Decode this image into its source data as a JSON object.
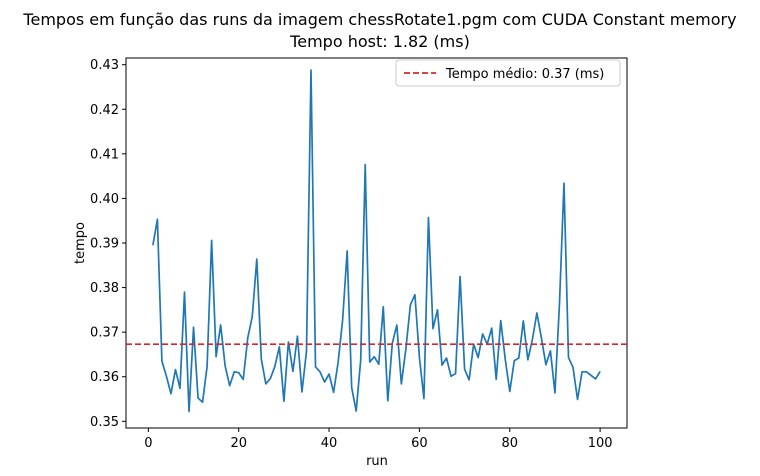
{
  "chart_data": {
    "type": "line",
    "title": "Tempos em função das runs da imagem chessRotate1.pgm com CUDA Constant memory",
    "subtitle": "Tempo host: 1.82 (ms)",
    "xlabel": "run",
    "ylabel": "tempo",
    "xlim": [
      -4.95,
      105.95
    ],
    "ylim": [
      0.3485,
      0.4315
    ],
    "x_ticks": [
      0,
      20,
      40,
      60,
      80,
      100
    ],
    "x_tick_labels": [
      "0",
      "20",
      "40",
      "60",
      "80",
      "100"
    ],
    "y_ticks": [
      0.35,
      0.36,
      0.37,
      0.38,
      0.39,
      0.4,
      0.41,
      0.42,
      0.43
    ],
    "y_tick_labels": [
      "0.35",
      "0.36",
      "0.37",
      "0.38",
      "0.39",
      "0.40",
      "0.41",
      "0.42",
      "0.43"
    ],
    "grid": false,
    "legend_position": "top-right",
    "series": [
      {
        "color": "#1f77b4",
        "style": "solid",
        "x": [
          1,
          2,
          3,
          4,
          5,
          6,
          7,
          8,
          9,
          10,
          11,
          12,
          13,
          14,
          15,
          16,
          17,
          18,
          19,
          20,
          21,
          22,
          23,
          24,
          25,
          26,
          27,
          28,
          29,
          30,
          31,
          32,
          33,
          34,
          35,
          36,
          37,
          38,
          39,
          40,
          41,
          42,
          43,
          44,
          45,
          46,
          47,
          48,
          49,
          50,
          51,
          52,
          53,
          54,
          55,
          56,
          57,
          58,
          59,
          60,
          61,
          62,
          63,
          64,
          65,
          66,
          67,
          68,
          69,
          70,
          71,
          72,
          73,
          74,
          75,
          76,
          77,
          78,
          79,
          80,
          81,
          82,
          83,
          84,
          85,
          86,
          87,
          88,
          89,
          90,
          91,
          92,
          93,
          94,
          95,
          96,
          97,
          98,
          99,
          100
        ],
        "values": [
          0.3895,
          0.3953,
          0.3635,
          0.3601,
          0.3562,
          0.3616,
          0.3574,
          0.379,
          0.3522,
          0.3711,
          0.3552,
          0.3543,
          0.3623,
          0.3906,
          0.3645,
          0.3716,
          0.3624,
          0.358,
          0.3611,
          0.3609,
          0.3594,
          0.3687,
          0.3735,
          0.3864,
          0.364,
          0.3584,
          0.3596,
          0.3623,
          0.3667,
          0.3545,
          0.3678,
          0.3612,
          0.3691,
          0.3566,
          0.3657,
          0.4288,
          0.3622,
          0.3611,
          0.3588,
          0.3606,
          0.3565,
          0.3632,
          0.3727,
          0.3882,
          0.3576,
          0.3523,
          0.3637,
          0.4076,
          0.3633,
          0.3645,
          0.3628,
          0.3757,
          0.3546,
          0.3675,
          0.3716,
          0.3584,
          0.3662,
          0.3761,
          0.3784,
          0.3643,
          0.3551,
          0.3957,
          0.3708,
          0.375,
          0.3626,
          0.3642,
          0.3601,
          0.3607,
          0.3825,
          0.3617,
          0.3593,
          0.3673,
          0.3643,
          0.3696,
          0.3673,
          0.3709,
          0.3594,
          0.3726,
          0.3639,
          0.3567,
          0.3636,
          0.3642,
          0.3725,
          0.3638,
          0.3683,
          0.3743,
          0.3687,
          0.3627,
          0.3658,
          0.3564,
          0.3763,
          0.4034,
          0.3643,
          0.3621,
          0.3549,
          0.3611,
          0.3611,
          0.3603,
          0.3595,
          0.3612
        ]
      },
      {
        "name": "Tempo médio: 0.37 (ms)",
        "color": "#d62728",
        "style": "dashed",
        "constant": 0.3673
      }
    ]
  }
}
